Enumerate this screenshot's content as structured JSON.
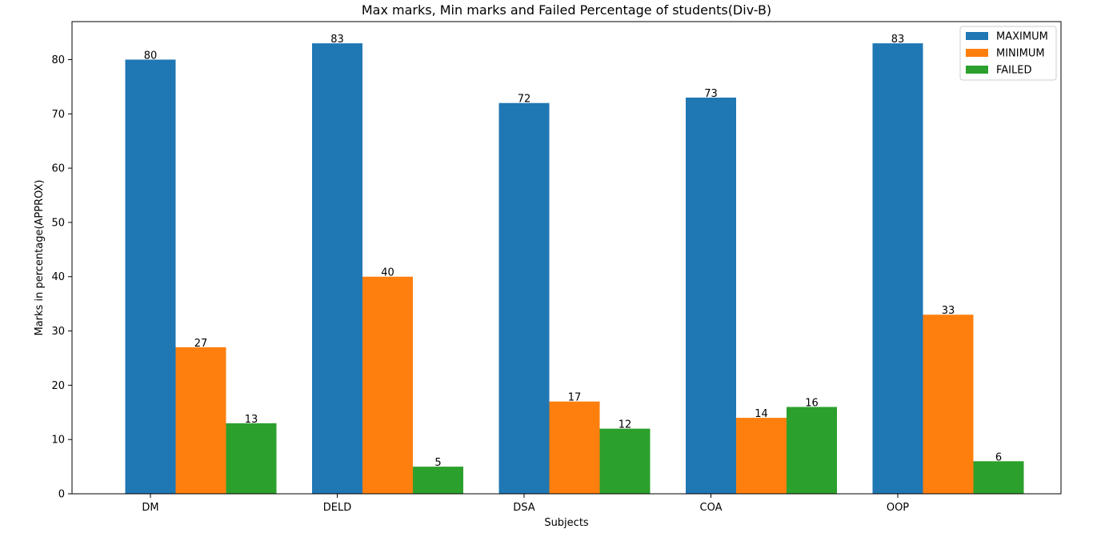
{
  "chart_data": {
    "type": "bar",
    "title": "Max marks, Min marks and Failed Percentage of students(Div-B)",
    "xlabel": "Subjects",
    "ylabel": "Marks in percentage(APPROX)",
    "categories": [
      "DM",
      "DELD",
      "DSA",
      "COA",
      "OOP"
    ],
    "series": [
      {
        "name": "MAXIMUM",
        "color": "#1f77b4",
        "values": [
          80,
          83,
          72,
          73,
          83
        ]
      },
      {
        "name": "MINIMUM",
        "color": "#ff7f0e",
        "values": [
          27,
          40,
          17,
          14,
          33
        ]
      },
      {
        "name": "FAILED",
        "color": "#2ca02c",
        "values": [
          13,
          5,
          12,
          16,
          6
        ]
      }
    ],
    "ylim": [
      0,
      87
    ],
    "yticks": [
      0,
      10,
      20,
      30,
      40,
      50,
      60,
      70,
      80
    ],
    "grid": false,
    "legend": "top-right"
  }
}
